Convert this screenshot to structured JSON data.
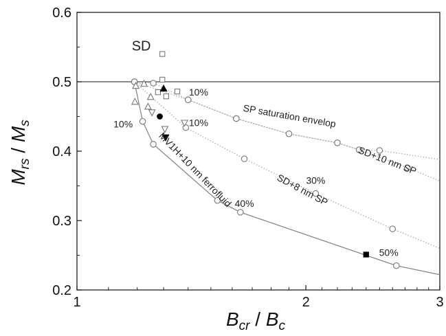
{
  "chart_data": {
    "type": "scatter",
    "x_scale": "log",
    "xlim": [
      1,
      3
    ],
    "ylim": [
      0.2,
      0.6
    ],
    "x_ticks": [
      1,
      2,
      3
    ],
    "x_tick_labels": [
      "1",
      "2",
      "3"
    ],
    "y_ticks": [
      0.2,
      0.3,
      0.4,
      0.5,
      0.6
    ],
    "y_tick_labels": [
      "0.2",
      "0.3",
      "0.4",
      "0.5",
      "0.6"
    ],
    "xlabel": {
      "main": "B",
      "sub1": "cr",
      "sep": " / ",
      "main2": "B",
      "sub2": "c"
    },
    "ylabel": {
      "main": "M",
      "sub1": "rs",
      "sep": " / ",
      "main2": "M",
      "sub2": "s"
    },
    "grid": false,
    "reference_line": {
      "y": 0.5
    },
    "curves": [
      {
        "label": "SP saturation envelop",
        "color": "#aaaaaa",
        "style": "dotted",
        "points": [
          [
            1.19,
            0.5
          ],
          [
            1.4,
            0.474
          ],
          [
            1.62,
            0.447
          ],
          [
            1.9,
            0.425
          ],
          [
            2.2,
            0.412
          ],
          [
            2.35,
            0.402
          ],
          [
            2.5,
            0.401
          ]
        ],
        "extension": [
          [
            2.5,
            0.401
          ],
          [
            3.0,
            0.388
          ]
        ]
      },
      {
        "label": "SD+10 nm SP",
        "color": "#aaaaaa",
        "style": "dotted",
        "points": [
          [
            1.19,
            0.5
          ],
          [
            1.26,
            0.498
          ],
          [
            1.4,
            0.474
          ],
          [
            1.62,
            0.447
          ],
          [
            1.9,
            0.425
          ],
          [
            2.2,
            0.412
          ],
          [
            2.35,
            0.402
          ],
          [
            2.72,
            0.376
          ]
        ],
        "extension": [
          [
            2.72,
            0.376
          ],
          [
            3.0,
            0.357
          ]
        ]
      },
      {
        "label": "SD+8 nm SP",
        "color": "#aaaaaa",
        "style": "dotted",
        "points": [
          [
            1.19,
            0.5
          ],
          [
            1.39,
            0.434
          ],
          [
            1.66,
            0.389
          ],
          [
            2.06,
            0.339
          ],
          [
            2.6,
            0.288
          ]
        ],
        "extension": [
          [
            2.6,
            0.288
          ],
          [
            3.0,
            0.26
          ]
        ]
      },
      {
        "label": "MV1H+10 nm ferrofluid",
        "color": "#888888",
        "style": "solid",
        "points": [
          [
            1.19,
            0.5
          ],
          [
            1.22,
            0.443
          ],
          [
            1.26,
            0.41
          ],
          [
            1.53,
            0.329
          ],
          [
            1.64,
            0.312
          ],
          [
            2.63,
            0.235
          ]
        ],
        "extension": [
          [
            2.63,
            0.235
          ],
          [
            3.0,
            0.222
          ]
        ]
      }
    ],
    "markers": [
      {
        "name": "open-square",
        "shape": "square",
        "filled": false,
        "points": [
          [
            1.295,
            0.54
          ],
          [
            1.295,
            0.503
          ],
          [
            1.278,
            0.485
          ],
          [
            1.31,
            0.479
          ],
          [
            1.355,
            0.486
          ]
        ]
      },
      {
        "name": "open-triangle-up",
        "shape": "triangle-up",
        "filled": false,
        "points": [
          [
            1.195,
            0.494
          ],
          [
            1.225,
            0.497
          ],
          [
            1.192,
            0.471
          ],
          [
            1.24,
            0.464
          ],
          [
            1.25,
            0.478
          ]
        ]
      },
      {
        "name": "open-triangle-down",
        "shape": "triangle-down",
        "filled": false,
        "points": [
          [
            1.255,
            0.456
          ],
          [
            1.305,
            0.432
          ],
          [
            1.385,
            0.441
          ]
        ]
      },
      {
        "name": "filled-triangle-up",
        "shape": "triangle-up",
        "filled": true,
        "points": [
          [
            1.3,
            0.49
          ]
        ]
      },
      {
        "name": "filled-circle",
        "shape": "circle",
        "filled": true,
        "points": [
          [
            1.285,
            0.45
          ]
        ]
      },
      {
        "name": "filled-triangle-down",
        "shape": "triangle-down",
        "filled": true,
        "points": [
          [
            1.308,
            0.42
          ]
        ]
      },
      {
        "name": "filled-square",
        "shape": "square",
        "filled": true,
        "points": [
          [
            2.4,
            0.251
          ]
        ]
      }
    ],
    "annotations": [
      {
        "text": "SD",
        "x": 1.215,
        "y": 0.545,
        "size": 20,
        "rotate": 0
      },
      {
        "text": "10%",
        "x": 1.445,
        "y": 0.48,
        "size": 14,
        "rotate": 0
      },
      {
        "text": "10%",
        "x": 1.15,
        "y": 0.434,
        "size": 14,
        "rotate": 0
      },
      {
        "text": "10%",
        "x": 1.445,
        "y": 0.436,
        "size": 14,
        "rotate": 0
      },
      {
        "text": "SP saturation envelop",
        "x": 1.9,
        "y": 0.446,
        "size": 14,
        "rotate": 10
      },
      {
        "text": "SD+10 nm SP",
        "x": 2.55,
        "y": 0.382,
        "size": 14,
        "rotate": 21
      },
      {
        "text": "30%",
        "x": 2.06,
        "y": 0.353,
        "size": 14,
        "rotate": 0
      },
      {
        "text": "SD+8 nm SP",
        "x": 1.97,
        "y": 0.34,
        "size": 14,
        "rotate": 28
      },
      {
        "text": "40%",
        "x": 1.66,
        "y": 0.32,
        "size": 14,
        "rotate": 0
      },
      {
        "text": "MV1H+10 nm ferrofluid",
        "x": 1.42,
        "y": 0.37,
        "size": 14,
        "rotate": 46
      },
      {
        "text": "50%",
        "x": 2.57,
        "y": 0.249,
        "size": 14,
        "rotate": 0
      }
    ]
  }
}
